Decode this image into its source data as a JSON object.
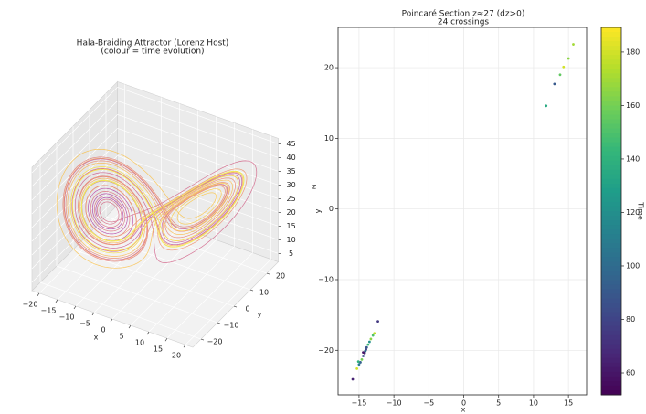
{
  "chart_data": [
    {
      "type": "line3d",
      "title": "Hala-Braiding Attractor (Lorenz Host)",
      "subtitle": "(colour = time evolution)",
      "xlabel": "x",
      "ylabel": "y",
      "zlabel": "z",
      "line_colormap": "plasma",
      "xlim": [
        -22,
        22
      ],
      "ylim": [
        -25,
        27
      ],
      "zlim": [
        2,
        47
      ],
      "xticks": [
        {
          "value": -20,
          "label": "−20"
        },
        {
          "value": -15,
          "label": "−15"
        },
        {
          "value": -10,
          "label": "−10"
        },
        {
          "value": -5,
          "label": "−5"
        },
        0,
        5,
        10,
        15,
        20
      ],
      "yticks": [
        {
          "value": -20,
          "label": "−20"
        },
        {
          "value": -10,
          "label": "−10"
        },
        0,
        10,
        20
      ],
      "zticks": [
        5,
        10,
        15,
        20,
        25,
        30,
        35,
        40,
        45
      ],
      "grid": true
    },
    {
      "type": "scatter",
      "title": "Poincaré Section z≈27 (dz>0)",
      "subtitle": "24 crossings",
      "xlabel": "x",
      "ylabel": "y",
      "x": [
        15.7,
        15.0,
        14.3,
        13.8,
        13.0,
        11.8,
        -12.3,
        -12.8,
        -13.0,
        -13.3,
        -13.5,
        -13.7,
        -13.9,
        -14.0,
        -14.1,
        -14.2,
        -14.4,
        -14.6,
        -14.8,
        -15.0,
        -15.1,
        -15.3,
        -14.4,
        -15.9
      ],
      "y": [
        23.3,
        21.3,
        20.1,
        19.0,
        17.7,
        14.6,
        -15.9,
        -17.6,
        -17.9,
        -18.4,
        -18.8,
        -19.2,
        -19.6,
        -19.9,
        -20.1,
        -20.4,
        -20.8,
        -21.3,
        -21.7,
        -22.0,
        -21.6,
        -22.6,
        -20.3,
        -24.1
      ],
      "color_values": [
        170,
        165,
        180,
        155,
        90,
        135,
        75,
        175,
        150,
        165,
        120,
        145,
        90,
        80,
        100,
        70,
        85,
        160,
        95,
        110,
        140,
        180,
        60,
        65
      ],
      "xlim": [
        -18.0,
        17.6
      ],
      "ylim": [
        -26.3,
        25.7
      ],
      "xticks": [
        {
          "value": -15,
          "label": "−15"
        },
        {
          "value": -10,
          "label": "−10"
        },
        {
          "value": -5,
          "label": "−5"
        },
        0,
        5,
        10,
        15
      ],
      "yticks": [
        {
          "value": -20,
          "label": "−20"
        },
        {
          "value": -10,
          "label": "−10"
        },
        0,
        10,
        20
      ],
      "grid": true,
      "colorbar": {
        "label": "Time",
        "colormap": "viridis",
        "lim": [
          51.8,
          189.2
        ],
        "ticks": [
          60,
          80,
          100,
          120,
          140,
          160,
          180
        ]
      }
    }
  ]
}
